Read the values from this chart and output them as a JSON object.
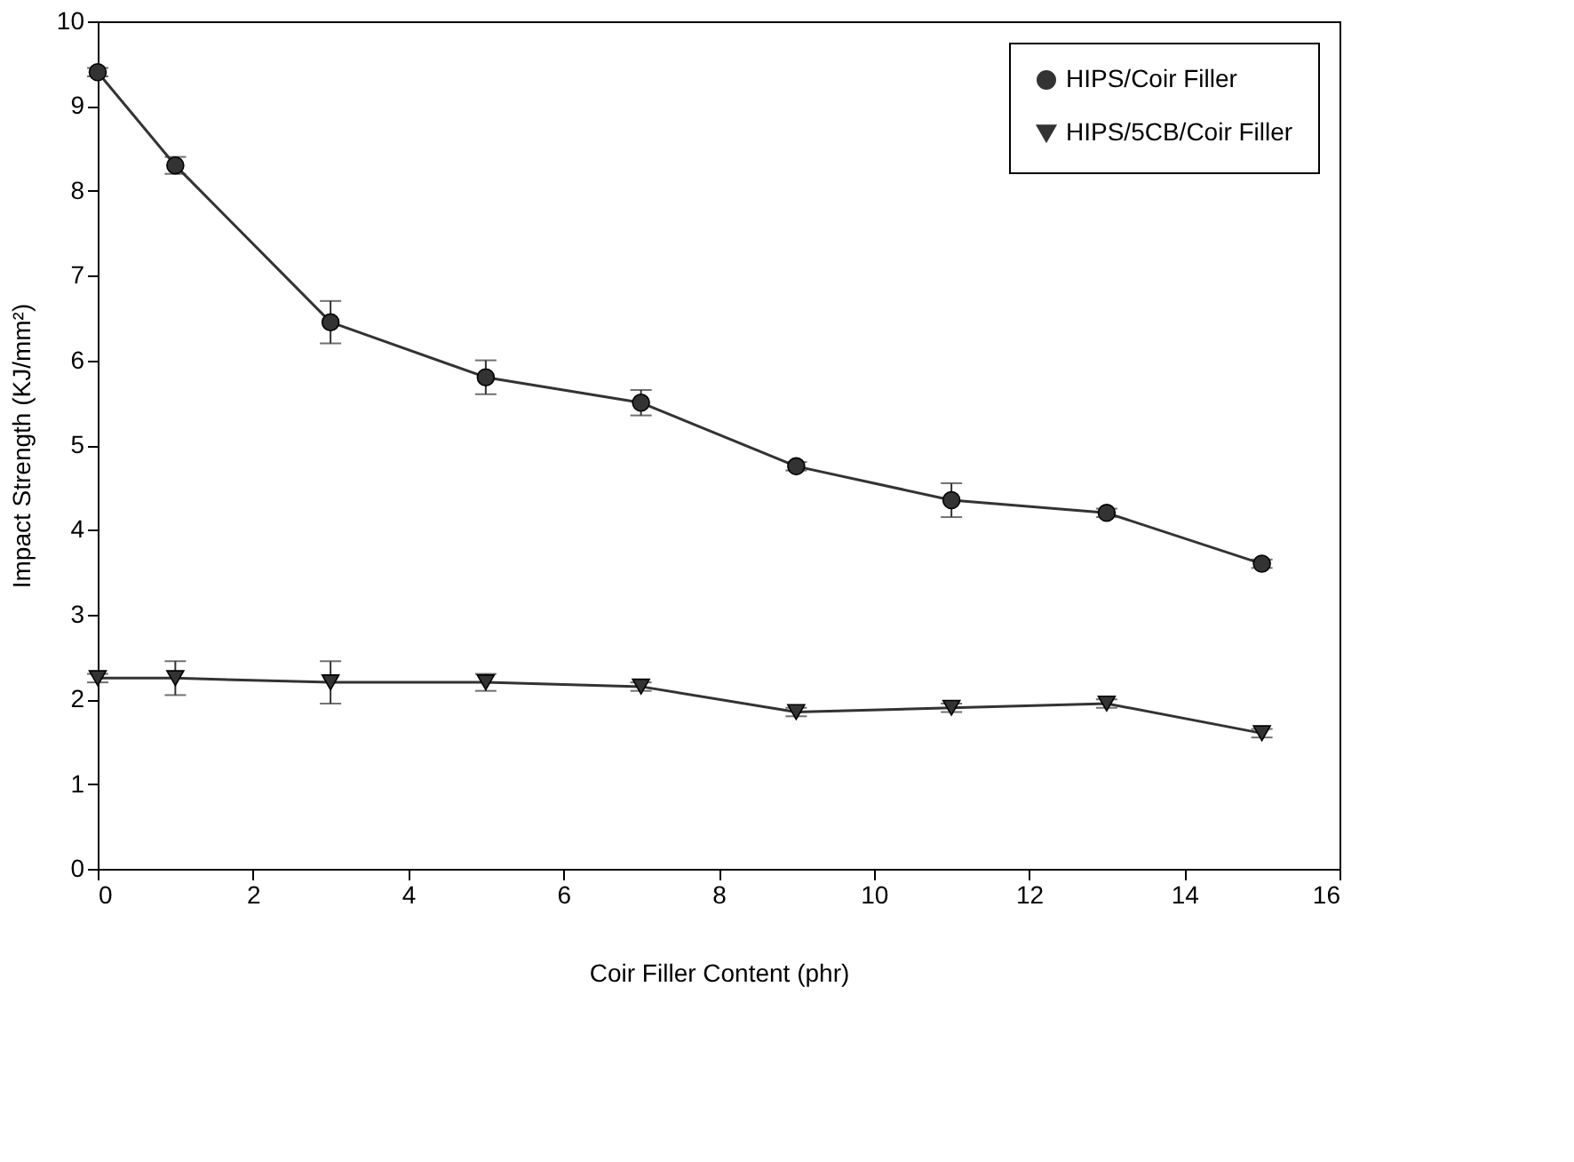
{
  "chart_data": {
    "type": "line",
    "xlabel": "Coir Filler Content (phr)",
    "ylabel": "Impact Strength (KJ/mm²)",
    "xlim": [
      0,
      16
    ],
    "xticks": [
      0,
      2,
      4,
      6,
      8,
      10,
      12,
      14,
      16
    ],
    "ylim": [
      0,
      10
    ],
    "yticks": [
      0,
      1,
      2,
      3,
      4,
      5,
      6,
      7,
      8,
      9,
      10
    ],
    "grid": false,
    "legend": "top right",
    "line_style": "solid",
    "series": [
      {
        "name": "HIPS/Coir Filler",
        "color": "#333333",
        "marker": "circle",
        "x": [
          0,
          1,
          3,
          5,
          7,
          9,
          11,
          13,
          15
        ],
        "values": [
          9.4,
          8.3,
          6.45,
          5.8,
          5.5,
          4.75,
          4.35,
          4.2,
          3.6
        ],
        "errors": [
          0.05,
          0.1,
          0.25,
          0.2,
          0.15,
          0.05,
          0.2,
          0.05,
          0.05
        ]
      },
      {
        "name": "HIPS/5CB/Coir Filler",
        "color": "#333333",
        "marker": "triangle",
        "x": [
          0,
          1,
          3,
          5,
          7,
          9,
          11,
          13,
          15
        ],
        "values": [
          2.25,
          2.25,
          2.2,
          2.2,
          2.15,
          1.85,
          1.9,
          1.95,
          1.6
        ],
        "errors": [
          0.05,
          0.2,
          0.25,
          0.1,
          0.05,
          0.05,
          0.05,
          0.05,
          0.05
        ]
      }
    ]
  }
}
